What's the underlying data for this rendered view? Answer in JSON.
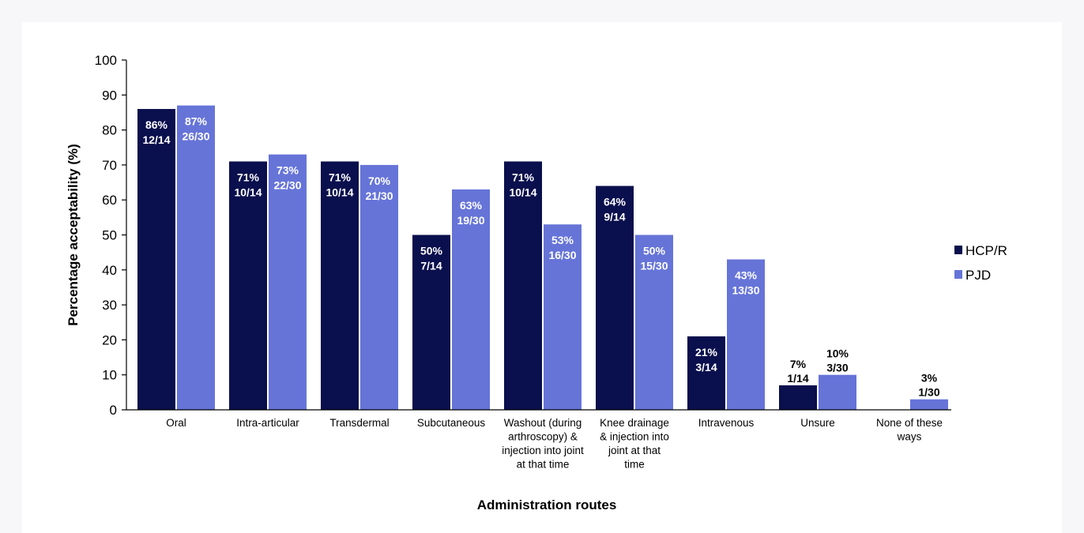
{
  "chart_data": {
    "type": "bar",
    "title": "",
    "xlabel": "Administration routes",
    "ylabel": "Percentage acceptability (%)",
    "ylim": [
      0,
      100
    ],
    "yticks": [
      "0",
      "10",
      "20",
      "30",
      "40",
      "50",
      "60",
      "70",
      "80",
      "90",
      "100"
    ],
    "categories": [
      [
        "Oral"
      ],
      [
        "Intra-articular"
      ],
      [
        "Transdermal"
      ],
      [
        "Subcutaneous"
      ],
      [
        "Washout (during",
        "arthroscopy) &",
        "injection into joint",
        "at that time"
      ],
      [
        "Knee drainage",
        "& injection into",
        "joint at that",
        "time"
      ],
      [
        "Intravenous"
      ],
      [
        "Unsure"
      ],
      [
        "None of these",
        "ways"
      ]
    ],
    "legend_position": "right",
    "grid": false,
    "series": [
      {
        "name": "HCP/R",
        "color": "#0a0f4d",
        "values": [
          86,
          71,
          71,
          50,
          71,
          64,
          21,
          7,
          null
        ],
        "labels": [
          [
            "86%",
            "12/14"
          ],
          [
            "71%",
            "10/14"
          ],
          [
            "71%",
            "10/14"
          ],
          [
            "50%",
            "7/14"
          ],
          [
            "71%",
            "10/14"
          ],
          [
            "64%",
            "9/14"
          ],
          [
            "21%",
            "3/14"
          ],
          [
            "7%",
            "1/14"
          ],
          null
        ]
      },
      {
        "name": "PJD",
        "color": "#6674d8",
        "values": [
          87,
          73,
          70,
          63,
          53,
          50,
          43,
          10,
          3
        ],
        "labels": [
          [
            "87%",
            "26/30"
          ],
          [
            "73%",
            "22/30"
          ],
          [
            "70%",
            "21/30"
          ],
          [
            "63%",
            "19/30"
          ],
          [
            "53%",
            "16/30"
          ],
          [
            "50%",
            "15/30"
          ],
          [
            "43%",
            "13/30"
          ],
          [
            "10%",
            "3/30"
          ],
          [
            "3%",
            "1/30"
          ]
        ]
      }
    ]
  }
}
